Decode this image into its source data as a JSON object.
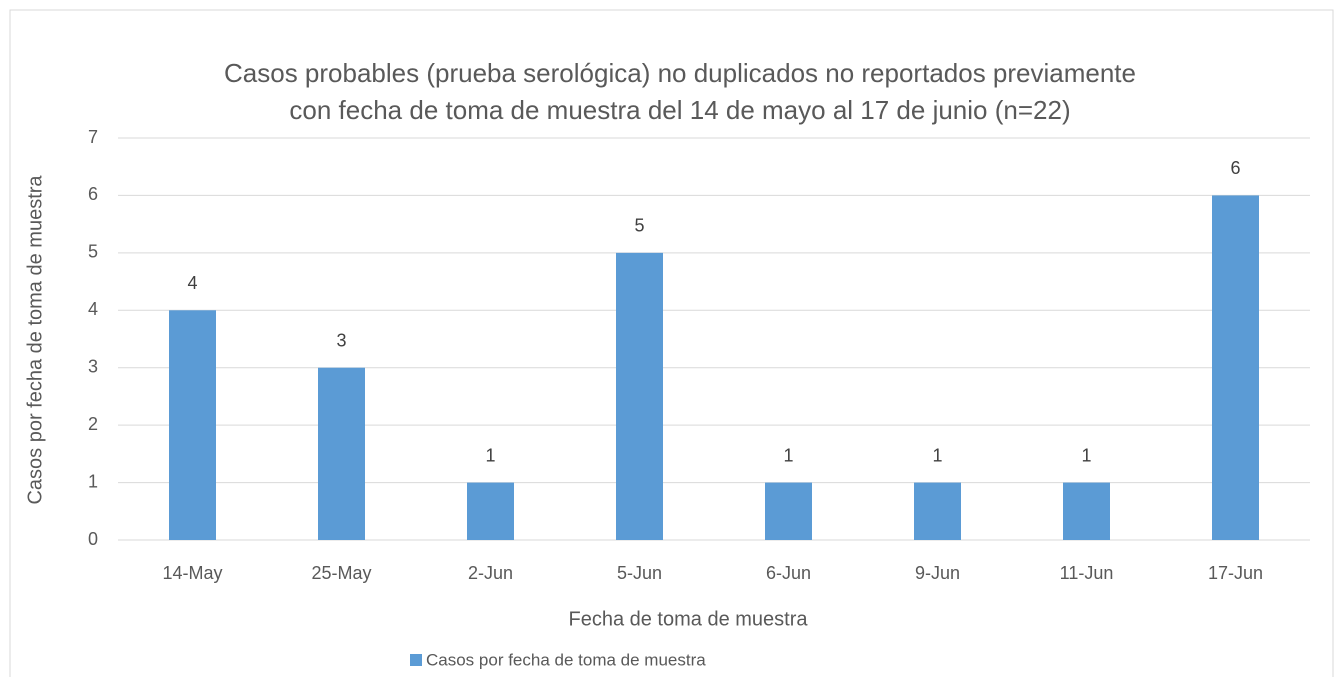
{
  "chart_data": {
    "type": "bar",
    "title": [
      "Casos probables (prueba serológica) no duplicados no reportados previamente",
      "con fecha de toma de muestra del 14 de mayo al 17 de junio (n=22)"
    ],
    "x_label": "Fecha de toma de muestra",
    "y_label": "Casos por fecha de toma de muestra",
    "categories": [
      "14-May",
      "25-May",
      "2-Jun",
      "5-Jun",
      "6-Jun",
      "9-Jun",
      "11-Jun",
      "17-Jun"
    ],
    "series": [
      {
        "name": "Casos por fecha de toma de muestra",
        "color": "#5b9bd5",
        "values": [
          4,
          3,
          1,
          5,
          1,
          1,
          1,
          6
        ]
      }
    ],
    "ylim": [
      0,
      7
    ],
    "yticks": [
      0,
      1,
      2,
      3,
      4,
      5,
      6,
      7
    ],
    "grid": true,
    "legend": "bottom"
  }
}
